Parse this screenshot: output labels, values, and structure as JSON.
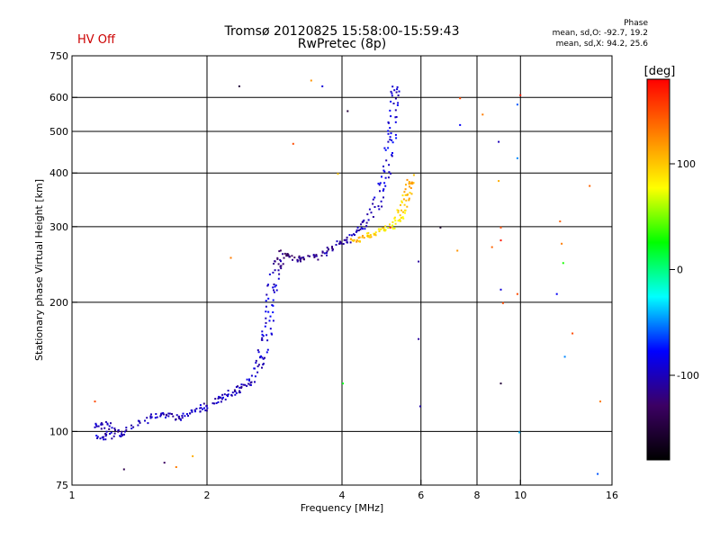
{
  "header": {
    "title_line1": "Tromsø 20120825 15:58:00-15:59:43",
    "title_line2": "RwPretec (8p)",
    "hv_status": "HV Off",
    "phase_title": "Phase",
    "phase_o": "mean, sd,O:  -92.7, 19.2",
    "phase_x": "mean, sd,X:  94.2, 25.6"
  },
  "colors": {
    "hv_status": "#cc0000",
    "colorbar_stops": [
      "#000000",
      "#3c0064",
      "#0000ff",
      "#00ffff",
      "#00ff00",
      "#ffff00",
      "#ff7f00",
      "#ff0000"
    ]
  },
  "colorbar": {
    "unit_label": "[deg]",
    "range": [
      -180,
      180
    ],
    "ticks": [
      {
        "value": 100,
        "label": "100"
      },
      {
        "value": 0,
        "label": "0"
      },
      {
        "value": -100,
        "label": "-100"
      }
    ]
  },
  "chart_data": {
    "type": "scatter",
    "xlabel": "Frequency [MHz]",
    "ylabel": "Stationary phase Virtual Height [km]",
    "x_scale": "log",
    "y_scale": "log",
    "xlim": [
      1,
      16
    ],
    "ylim": [
      75,
      750
    ],
    "x_ticks": [
      {
        "value": 1,
        "label": "1"
      },
      {
        "value": 2,
        "label": "2"
      },
      {
        "value": 4,
        "label": "4"
      },
      {
        "value": 6,
        "label": "6"
      },
      {
        "value": 8,
        "label": "8"
      },
      {
        "value": 10,
        "label": "10"
      },
      {
        "value": 16,
        "label": "16"
      }
    ],
    "y_ticks": [
      {
        "value": 75,
        "label": "75"
      },
      {
        "value": 100,
        "label": "100"
      },
      {
        "value": 200,
        "label": "200"
      },
      {
        "value": 300,
        "label": "300"
      },
      {
        "value": 400,
        "label": "400"
      },
      {
        "value": 500,
        "label": "500"
      },
      {
        "value": 600,
        "label": "600"
      },
      {
        "value": 750,
        "label": "750"
      }
    ],
    "x_grid": [
      2,
      4,
      6,
      8,
      10
    ],
    "y_grid": [
      100,
      200,
      300,
      400,
      500,
      600
    ],
    "grid": true,
    "o_trace": [
      {
        "f": 1.12,
        "h": 103,
        "phase": -100
      },
      {
        "f": 1.18,
        "h": 105,
        "phase": -95
      },
      {
        "f": 1.25,
        "h": 101,
        "phase": -110
      },
      {
        "f": 1.15,
        "h": 97,
        "phase": -90
      },
      {
        "f": 1.22,
        "h": 98,
        "phase": -105
      },
      {
        "f": 1.3,
        "h": 100,
        "phase": -100
      },
      {
        "f": 1.45,
        "h": 106,
        "phase": -100
      },
      {
        "f": 1.55,
        "h": 110,
        "phase": -95
      },
      {
        "f": 1.65,
        "h": 109,
        "phase": -105
      },
      {
        "f": 1.75,
        "h": 108,
        "phase": -100
      },
      {
        "f": 1.85,
        "h": 112,
        "phase": -95
      },
      {
        "f": 1.95,
        "h": 113,
        "phase": -100
      },
      {
        "f": 2.05,
        "h": 117,
        "phase": -100
      },
      {
        "f": 2.15,
        "h": 120,
        "phase": -95
      },
      {
        "f": 2.25,
        "h": 123,
        "phase": -100
      },
      {
        "f": 2.35,
        "h": 126,
        "phase": -105
      },
      {
        "f": 2.45,
        "h": 129,
        "phase": -100
      },
      {
        "f": 2.55,
        "h": 135,
        "phase": -95
      },
      {
        "f": 2.62,
        "h": 145,
        "phase": -100
      },
      {
        "f": 2.68,
        "h": 160,
        "phase": -90
      },
      {
        "f": 2.72,
        "h": 175,
        "phase": -95
      },
      {
        "f": 2.75,
        "h": 195,
        "phase": -85
      },
      {
        "f": 2.78,
        "h": 215,
        "phase": -90
      },
      {
        "f": 2.82,
        "h": 235,
        "phase": -100
      },
      {
        "f": 2.88,
        "h": 250,
        "phase": -115
      },
      {
        "f": 2.95,
        "h": 262,
        "phase": -120
      },
      {
        "f": 3.05,
        "h": 258,
        "phase": -125
      },
      {
        "f": 3.2,
        "h": 252,
        "phase": -120
      },
      {
        "f": 3.4,
        "h": 255,
        "phase": -115
      },
      {
        "f": 3.6,
        "h": 260,
        "phase": -110
      },
      {
        "f": 3.8,
        "h": 268,
        "phase": -110
      },
      {
        "f": 4.0,
        "h": 276,
        "phase": -105
      },
      {
        "f": 4.2,
        "h": 287,
        "phase": -100
      },
      {
        "f": 4.4,
        "h": 300,
        "phase": -100
      },
      {
        "f": 4.6,
        "h": 318,
        "phase": -95
      },
      {
        "f": 4.8,
        "h": 345,
        "phase": -95
      },
      {
        "f": 4.95,
        "h": 385,
        "phase": -90
      },
      {
        "f": 5.05,
        "h": 430,
        "phase": -90
      },
      {
        "f": 5.12,
        "h": 480,
        "phase": -85
      },
      {
        "f": 5.18,
        "h": 540,
        "phase": -90
      },
      {
        "f": 5.22,
        "h": 600,
        "phase": -95
      },
      {
        "f": 5.25,
        "h": 640,
        "phase": -100
      }
    ],
    "x_trace": [
      {
        "f": 4.2,
        "h": 278,
        "phase": 110
      },
      {
        "f": 4.4,
        "h": 283,
        "phase": 105
      },
      {
        "f": 4.6,
        "h": 288,
        "phase": 100
      },
      {
        "f": 4.8,
        "h": 292,
        "phase": 90
      },
      {
        "f": 5.0,
        "h": 297,
        "phase": 85
      },
      {
        "f": 5.2,
        "h": 305,
        "phase": 80
      },
      {
        "f": 5.35,
        "h": 318,
        "phase": 90
      },
      {
        "f": 5.45,
        "h": 335,
        "phase": 95
      },
      {
        "f": 5.55,
        "h": 355,
        "phase": 100
      },
      {
        "f": 5.62,
        "h": 375,
        "phase": 110
      },
      {
        "f": 5.68,
        "h": 395,
        "phase": 105
      }
    ],
    "noise": [
      {
        "f": 1.12,
        "h": 118,
        "phase": 150
      },
      {
        "f": 1.3,
        "h": 82,
        "phase": -140
      },
      {
        "f": 1.7,
        "h": 83,
        "phase": 130
      },
      {
        "f": 1.85,
        "h": 88,
        "phase": 110
      },
      {
        "f": 2.25,
        "h": 255,
        "phase": 130
      },
      {
        "f": 2.35,
        "h": 640,
        "phase": -150
      },
      {
        "f": 3.1,
        "h": 470,
        "phase": 150
      },
      {
        "f": 3.4,
        "h": 660,
        "phase": 120
      },
      {
        "f": 3.6,
        "h": 640,
        "phase": -90
      },
      {
        "f": 3.9,
        "h": 400,
        "phase": 100
      },
      {
        "f": 4.1,
        "h": 560,
        "phase": -150
      },
      {
        "f": 4.0,
        "h": 130,
        "phase": 20
      },
      {
        "f": 5.9,
        "h": 250,
        "phase": -110
      },
      {
        "f": 5.9,
        "h": 165,
        "phase": -110
      },
      {
        "f": 5.95,
        "h": 115,
        "phase": -105
      },
      {
        "f": 6.6,
        "h": 300,
        "phase": -160
      },
      {
        "f": 7.2,
        "h": 265,
        "phase": 120
      },
      {
        "f": 7.3,
        "h": 520,
        "phase": -80
      },
      {
        "f": 7.3,
        "h": 600,
        "phase": 150
      },
      {
        "f": 8.2,
        "h": 550,
        "phase": 130
      },
      {
        "f": 8.6,
        "h": 270,
        "phase": 140
      },
      {
        "f": 8.9,
        "h": 475,
        "phase": -100
      },
      {
        "f": 8.9,
        "h": 385,
        "phase": 110
      },
      {
        "f": 9.0,
        "h": 300,
        "phase": 150
      },
      {
        "f": 9.0,
        "h": 280,
        "phase": 170
      },
      {
        "f": 9.0,
        "h": 215,
        "phase": -90
      },
      {
        "f": 9.0,
        "h": 130,
        "phase": -150
      },
      {
        "f": 9.1,
        "h": 200,
        "phase": 150
      },
      {
        "f": 9.8,
        "h": 580,
        "phase": -60
      },
      {
        "f": 9.8,
        "h": 435,
        "phase": -50
      },
      {
        "f": 9.8,
        "h": 210,
        "phase": 150
      },
      {
        "f": 9.9,
        "h": 100,
        "phase": -40
      },
      {
        "f": 9.95,
        "h": 610,
        "phase": 170
      },
      {
        "f": 12.2,
        "h": 310,
        "phase": 140
      },
      {
        "f": 12.3,
        "h": 275,
        "phase": 130
      },
      {
        "f": 12.4,
        "h": 248,
        "phase": 30
      },
      {
        "f": 12.5,
        "h": 150,
        "phase": -50
      },
      {
        "f": 12.0,
        "h": 210,
        "phase": -80
      },
      {
        "f": 13.0,
        "h": 170,
        "phase": 150
      },
      {
        "f": 14.2,
        "h": 375,
        "phase": 140
      },
      {
        "f": 15.0,
        "h": 118,
        "phase": 130
      },
      {
        "f": 14.8,
        "h": 80,
        "phase": -60
      },
      {
        "f": 1.6,
        "h": 85,
        "phase": -130
      },
      {
        "f": 5.1,
        "h": 300,
        "phase": 170
      }
    ]
  }
}
